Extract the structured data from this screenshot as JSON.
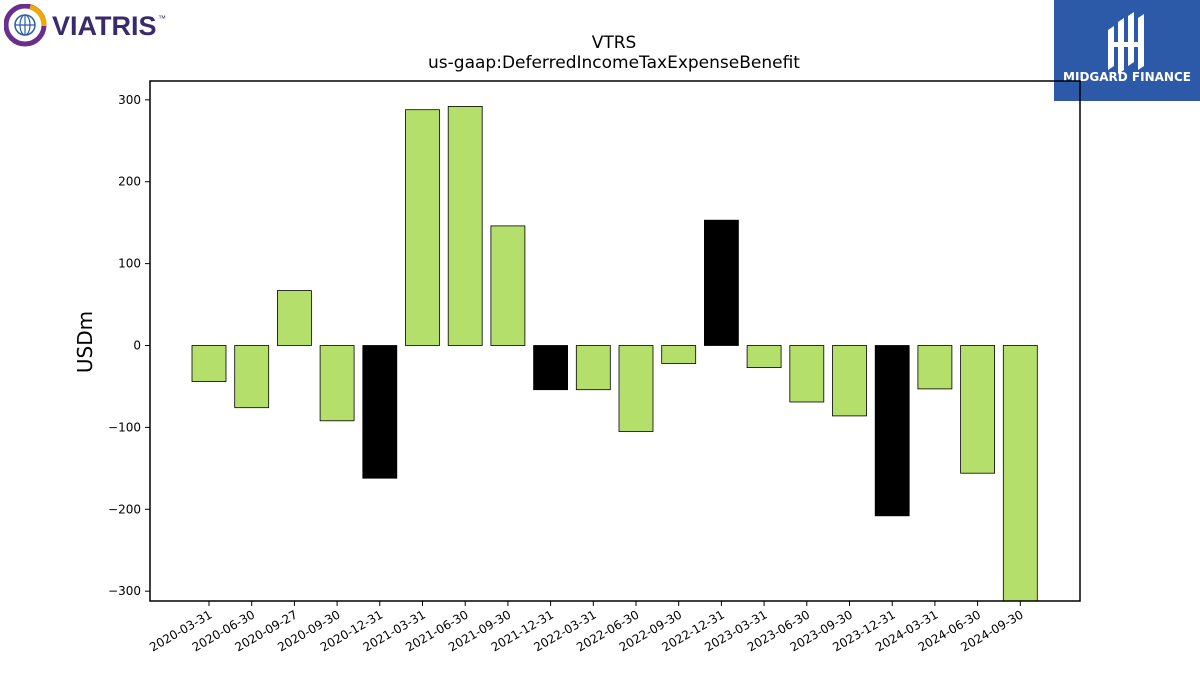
{
  "brand": {
    "company_name": "VIATRIS",
    "company_tm": "™",
    "publisher_name": "MIDGARD FINANCE",
    "company_colors": [
      "#6a2e8c",
      "#f2a900",
      "#2a5fa8"
    ],
    "publisher_bg": "#2d5aa8"
  },
  "chart_data": {
    "type": "bar",
    "title": "VTRS",
    "subtitle": "us-gaap:DeferredIncomeTaxExpenseBenefit",
    "xlabel": "",
    "ylabel": "USDm",
    "ylim": [
      -312,
      323
    ],
    "yticks": [
      300,
      200,
      100,
      0,
      -100,
      -200,
      -300
    ],
    "ytick_labels": [
      "300",
      "200",
      "100",
      "0",
      "−100",
      "−200",
      "−300"
    ],
    "grid": false,
    "legend": "none",
    "colors": {
      "default": "#b5df6b",
      "highlight": "#000000",
      "edge": "#000000"
    },
    "categories": [
      "2020-03-31",
      "2020-06-30",
      "2020-09-27",
      "2020-09-30",
      "2020-12-31",
      "2021-03-31",
      "2021-06-30",
      "2021-09-30",
      "2021-12-31",
      "2022-03-31",
      "2022-06-30",
      "2022-09-30",
      "2022-12-31",
      "2023-03-31",
      "2023-06-30",
      "2023-09-30",
      "2023-12-31",
      "2024-03-31",
      "2024-06-30",
      "2024-09-30"
    ],
    "values": [
      -44,
      -76,
      67,
      -92,
      -162,
      288,
      292,
      146,
      -54,
      -54,
      -105,
      -22,
      153,
      -27,
      -69,
      -86,
      -208,
      -53,
      -156,
      -312
    ],
    "highlighted": [
      false,
      false,
      false,
      false,
      true,
      false,
      false,
      false,
      true,
      false,
      false,
      false,
      true,
      false,
      false,
      false,
      true,
      false,
      false,
      false
    ]
  }
}
